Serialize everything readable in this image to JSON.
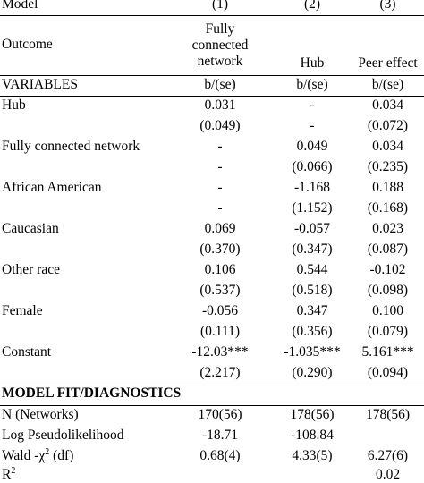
{
  "header": {
    "model_label": "Model",
    "model_numbers": [
      "(1)",
      "(2)",
      "(3)"
    ],
    "outcome_label": "Outcome",
    "outcomes": [
      [
        "Fully",
        "connected",
        "network"
      ],
      [
        "Hub"
      ],
      [
        "Peer effect"
      ]
    ],
    "variables_label": "VARIABLES",
    "stat_labels": [
      "b/(se)",
      "b/(se)",
      "b/(se)"
    ]
  },
  "rows": [
    {
      "label": "Hub",
      "coef": [
        "0.031",
        "-",
        "0.034"
      ],
      "se": [
        "(0.049)",
        "-",
        "(0.072)"
      ]
    },
    {
      "label": "Fully connected network",
      "coef": [
        "-",
        "0.049",
        "0.034"
      ],
      "se": [
        "-",
        "(0.066)",
        "(0.235)"
      ]
    },
    {
      "label": "African American",
      "coef": [
        "-",
        "-1.168",
        "0.188"
      ],
      "se": [
        "-",
        "(1.152)",
        "(0.168)"
      ]
    },
    {
      "label": "Caucasian",
      "coef": [
        "0.069",
        "-0.057",
        "0.023"
      ],
      "se": [
        "(0.370)",
        "(0.347)",
        "(0.087)"
      ]
    },
    {
      "label": "Other race",
      "coef": [
        "0.106",
        "0.544",
        "-0.102"
      ],
      "se": [
        "(0.537)",
        "(0.518)",
        "(0.098)"
      ]
    },
    {
      "label": "Female",
      "coef": [
        "-0.056",
        "0.347",
        "0.100"
      ],
      "se": [
        "(0.111)",
        "(0.356)",
        "(0.079)"
      ]
    },
    {
      "label": "Constant",
      "coef": [
        "-12.03***",
        "-1.035***",
        "5.161***"
      ],
      "se": [
        "(2.217)",
        "(0.290)",
        "(0.094)"
      ]
    }
  ],
  "diagnostics": {
    "section_label": "MODEL FIT/DIAGNOSTICS",
    "n": {
      "label": "N (Networks)",
      "values": [
        "170(56)",
        "178(56)",
        "178(56)"
      ]
    },
    "loglik": {
      "label": "Log Pseudolikelihood",
      "values": [
        "-18.71",
        "-108.84",
        ""
      ]
    },
    "wald": {
      "label_prefix": "Wald -χ",
      "label_sup": "2",
      "label_suffix": " (df)",
      "values": [
        "0.68(4)",
        "4.33(5)",
        "6.27(6)"
      ]
    },
    "r2": {
      "label_prefix": "R",
      "label_sup": "2",
      "values": [
        "",
        "",
        "0.02"
      ]
    }
  }
}
